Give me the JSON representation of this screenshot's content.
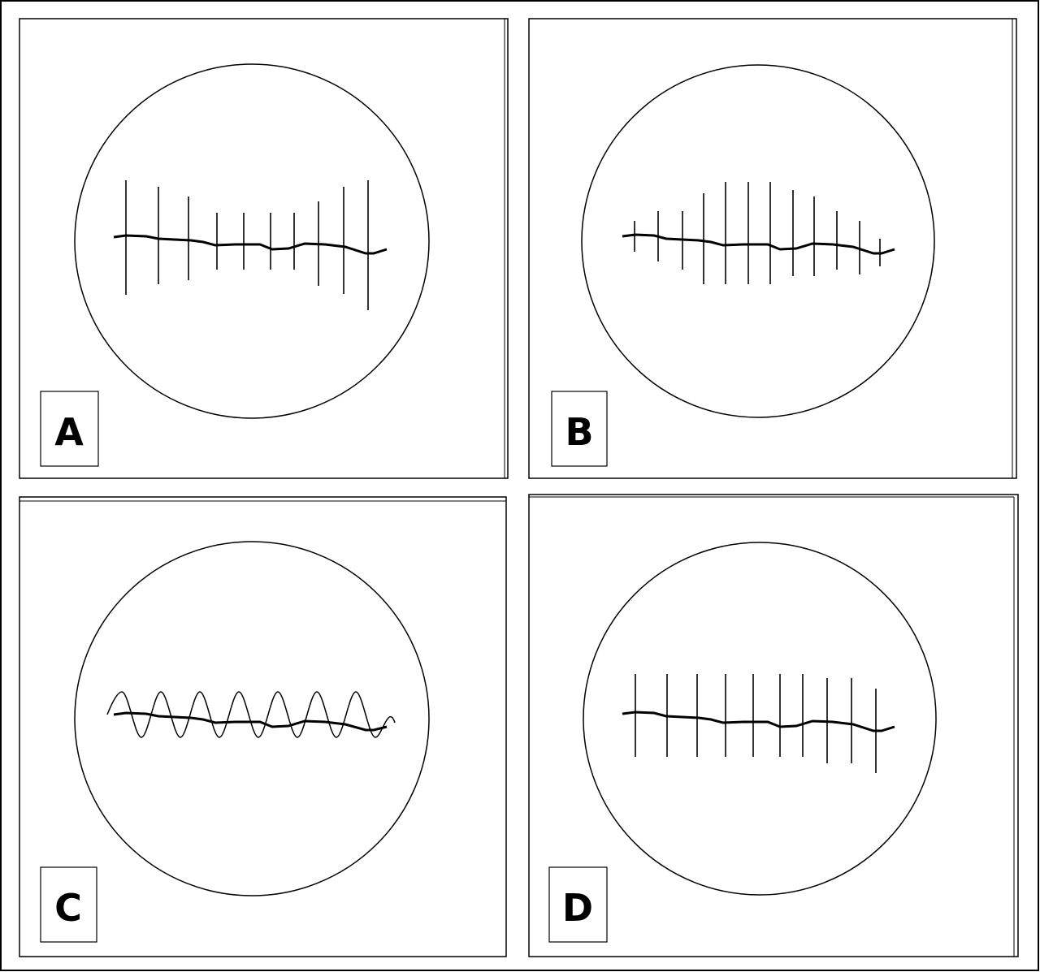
{
  "panels": [
    {
      "id": "a",
      "label": "A",
      "suture": "interrupted-variable-length"
    },
    {
      "id": "b",
      "label": "B",
      "suture": "interrupted-tapered-ends"
    },
    {
      "id": "c",
      "label": "C",
      "suture": "continuous-running"
    },
    {
      "id": "d",
      "label": "D",
      "suture": "interrupted-uniform"
    }
  ],
  "colors": {
    "stroke": "#000000",
    "background": "#ffffff"
  }
}
